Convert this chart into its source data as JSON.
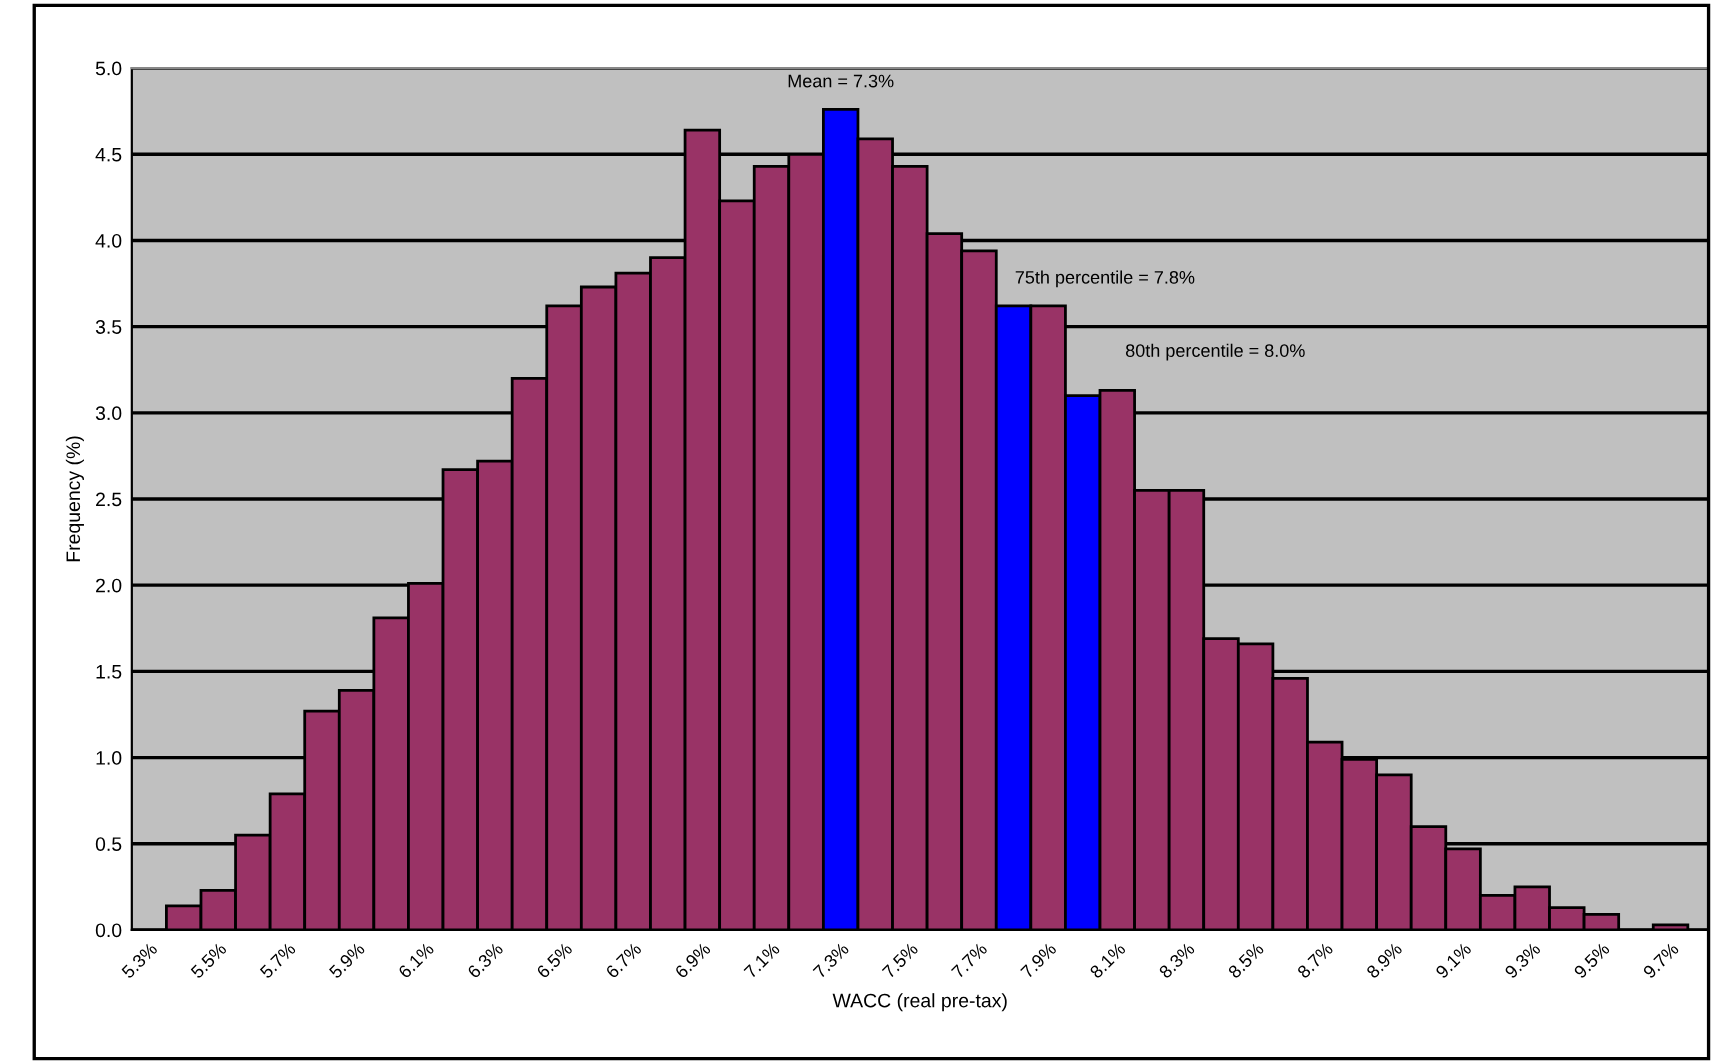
{
  "chart_data": {
    "type": "bar",
    "xlabel": "WACC (real pre-tax)",
    "ylabel": "Frequency (%)",
    "categories": [
      "5.3%",
      null,
      "5.5%",
      null,
      "5.7%",
      null,
      "5.9%",
      null,
      "6.1%",
      null,
      "6.3%",
      null,
      "6.5%",
      null,
      "6.7%",
      null,
      "6.9%",
      null,
      "7.1%",
      null,
      "7.3%",
      null,
      "7.5%",
      null,
      "7.7%",
      null,
      "7.9%",
      null,
      "8.1%",
      null,
      "8.3%",
      null,
      "8.5%",
      null,
      "8.7%",
      null,
      "8.9%",
      null,
      "9.1%",
      null,
      "9.3%",
      null,
      "9.5%",
      null,
      "9.7%"
    ],
    "values": [
      null,
      0.14,
      0.23,
      0.55,
      0.79,
      1.27,
      1.39,
      1.81,
      2.01,
      2.67,
      2.72,
      3.2,
      3.62,
      3.73,
      3.81,
      3.9,
      4.64,
      4.23,
      4.43,
      4.5,
      4.76,
      4.59,
      4.43,
      4.04,
      3.94,
      3.62,
      3.62,
      3.1,
      3.13,
      2.55,
      2.55,
      1.69,
      1.66,
      1.46,
      1.09,
      0.99,
      0.9,
      0.6,
      0.47,
      0.2,
      0.25,
      0.13,
      0.09,
      null,
      0.03
    ],
    "colors": [
      "#993366",
      "#993366",
      "#993366",
      "#993366",
      "#993366",
      "#993366",
      "#993366",
      "#993366",
      "#993366",
      "#993366",
      "#993366",
      "#993366",
      "#993366",
      "#993366",
      "#993366",
      "#993366",
      "#993366",
      "#993366",
      "#993366",
      "#993366",
      "#0000ff",
      "#993366",
      "#993366",
      "#993366",
      "#993366",
      "#0000ff",
      "#993366",
      "#0000ff",
      "#993366",
      "#993366",
      "#993366",
      "#993366",
      "#993366",
      "#993366",
      "#993366",
      "#993366",
      "#993366",
      "#993366",
      "#993366",
      "#993366",
      "#993366",
      "#993366",
      "#993366",
      "#993366",
      "#993366"
    ],
    "ylim": [
      0,
      5
    ],
    "yticks": [
      {
        "value": 0,
        "label": "0.0"
      },
      0.5,
      {
        "value": 1,
        "label": "1.0"
      },
      1.5,
      {
        "value": 2,
        "label": "2.0"
      },
      2.5,
      {
        "value": 3,
        "label": "3.0"
      },
      3.5,
      {
        "value": 4,
        "label": "4.0"
      },
      4.5,
      {
        "value": 5,
        "label": "5.0"
      }
    ],
    "grid": "y",
    "annotations": [
      {
        "text": "Mean = 7.3%",
        "x": "7.3%",
        "y": 4.76
      },
      "75th percentile = 7.8%",
      "80th percentile = 8.0%"
    ]
  }
}
